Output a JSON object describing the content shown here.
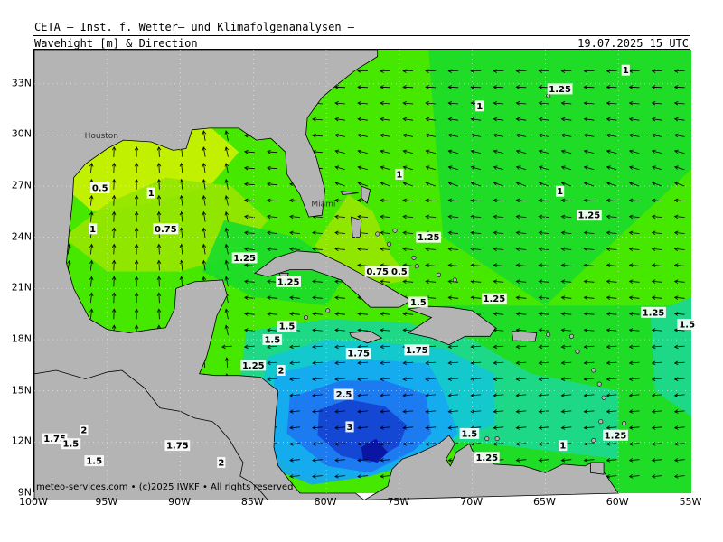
{
  "header": {
    "title": "CETA – Inst. f. Wetter– und Klimafolgenanalysen –",
    "subtitle": "Wavehight [m] & Direction",
    "datetime": "19.07.2025 15 UTC"
  },
  "axes": {
    "lat_labels": [
      "33N",
      "30N",
      "27N",
      "24N",
      "21N",
      "18N",
      "15N",
      "12N",
      "9N"
    ],
    "lon_labels": [
      "100W",
      "95W",
      "90W",
      "85W",
      "80W",
      "75W",
      "70W",
      "65W",
      "60W",
      "55W"
    ]
  },
  "contour_labels": [
    {
      "text": "1",
      "lon": -59.5,
      "lat": 33.8
    },
    {
      "text": "1.25",
      "lon": -64.0,
      "lat": 32.7
    },
    {
      "text": "1",
      "lon": -69.5,
      "lat": 31.7
    },
    {
      "text": "0.5",
      "lon": -95.5,
      "lat": 26.9
    },
    {
      "text": "1",
      "lon": -92.0,
      "lat": 26.6
    },
    {
      "text": "1",
      "lon": -75.0,
      "lat": 27.7
    },
    {
      "text": "1",
      "lon": -64.0,
      "lat": 26.7
    },
    {
      "text": "1.25",
      "lon": -62.0,
      "lat": 25.3
    },
    {
      "text": "1",
      "lon": -96.0,
      "lat": 24.5
    },
    {
      "text": "0.75",
      "lon": -91.0,
      "lat": 24.5
    },
    {
      "text": "1.25",
      "lon": -73.0,
      "lat": 24.0
    },
    {
      "text": "1.25",
      "lon": -85.6,
      "lat": 22.8
    },
    {
      "text": "0.75",
      "lon": -76.5,
      "lat": 22.0
    },
    {
      "text": "0.5",
      "lon": -75.0,
      "lat": 22.0
    },
    {
      "text": "1.25",
      "lon": -82.6,
      "lat": 21.4
    },
    {
      "text": "1.5",
      "lon": -73.7,
      "lat": 20.2
    },
    {
      "text": "1.25",
      "lon": -68.5,
      "lat": 20.4
    },
    {
      "text": "1.25",
      "lon": -57.6,
      "lat": 19.6
    },
    {
      "text": "1.5",
      "lon": -55.3,
      "lat": 18.9
    },
    {
      "text": "1.5",
      "lon": -82.7,
      "lat": 18.8
    },
    {
      "text": "1.5",
      "lon": -83.7,
      "lat": 18.0
    },
    {
      "text": "1.75",
      "lon": -77.8,
      "lat": 17.2
    },
    {
      "text": "1.75",
      "lon": -73.8,
      "lat": 17.4
    },
    {
      "text": "1.25",
      "lon": -85.0,
      "lat": 16.5
    },
    {
      "text": "2",
      "lon": -83.1,
      "lat": 16.2
    },
    {
      "text": "2.5",
      "lon": -78.8,
      "lat": 14.8
    },
    {
      "text": "3",
      "lon": -78.4,
      "lat": 12.9
    },
    {
      "text": "2",
      "lon": -96.6,
      "lat": 12.7
    },
    {
      "text": "1.75",
      "lon": -98.6,
      "lat": 12.2
    },
    {
      "text": "1.5",
      "lon": -97.5,
      "lat": 11.9
    },
    {
      "text": "1.75",
      "lon": -90.2,
      "lat": 11.8
    },
    {
      "text": "1.5",
      "lon": -95.9,
      "lat": 10.9
    },
    {
      "text": "2",
      "lon": -87.2,
      "lat": 10.8
    },
    {
      "text": "1.5",
      "lon": -70.2,
      "lat": 12.5
    },
    {
      "text": "1.25",
      "lon": -69.0,
      "lat": 11.1
    },
    {
      "text": "1",
      "lon": -63.8,
      "lat": 11.8
    },
    {
      "text": "1.25",
      "lon": -60.2,
      "lat": 12.4
    }
  ],
  "places": [
    {
      "text": "Miami",
      "lon": -80.2,
      "lat": 25.8
    },
    {
      "text": "Houston",
      "lon": -95.4,
      "lat": 29.8
    }
  ],
  "credit": "meteo-services.com • (c)2025 IWKF • All rights reserved",
  "colors": {
    "land": "#b4b4b4",
    "wave_0_5": "#c8f000",
    "wave_0_75": "#96e600",
    "wave_1": "#46e800",
    "wave_1_25": "#1edc28",
    "wave_1_5": "#1ed78c",
    "wave_1_75": "#14c8d2",
    "wave_2": "#14aaf0",
    "wave_2_5": "#1e78f0",
    "wave_3": "#1446d2",
    "wave_3_5": "#0a14a0",
    "arrow": "#000000"
  }
}
